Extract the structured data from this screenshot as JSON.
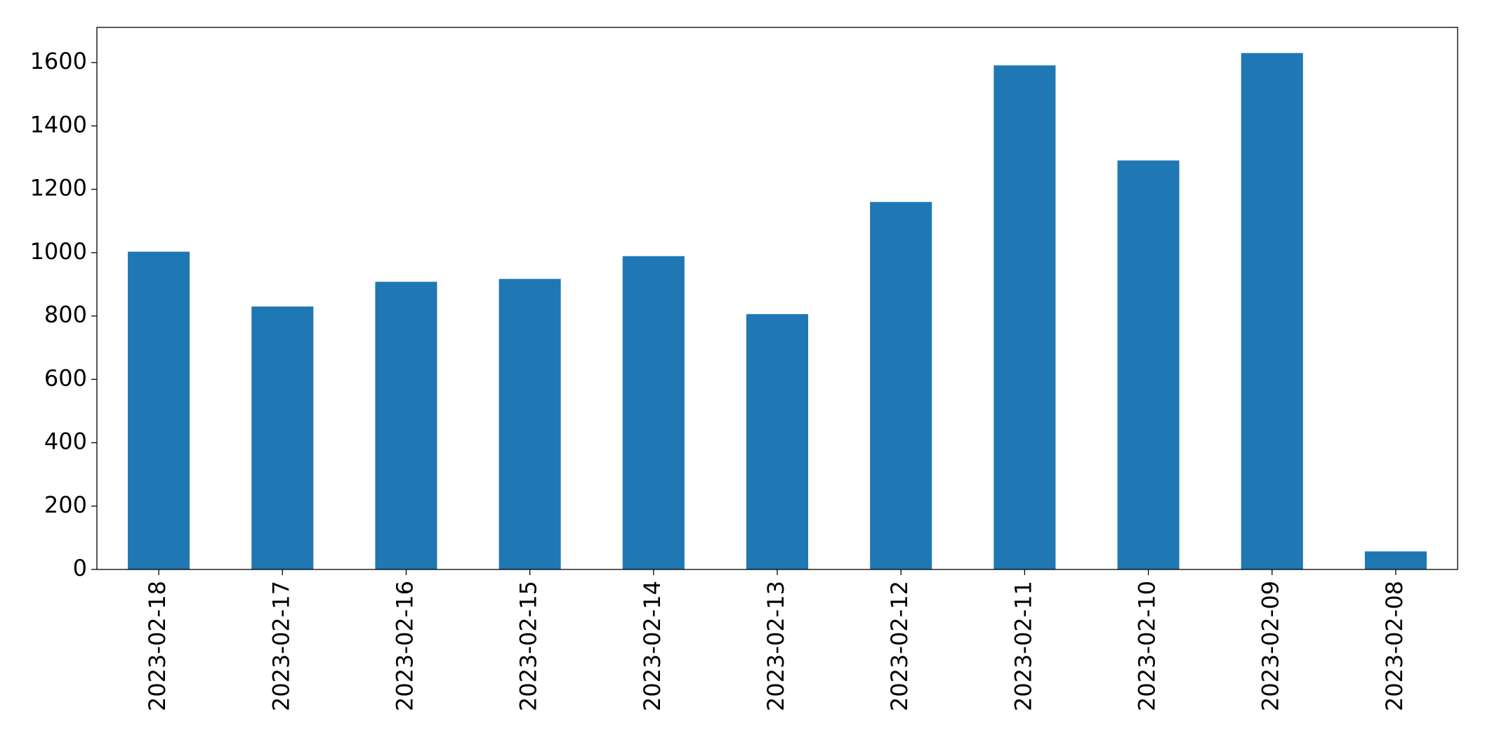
{
  "chart_data": {
    "type": "bar",
    "categories": [
      "2023-02-18",
      "2023-02-17",
      "2023-02-16",
      "2023-02-15",
      "2023-02-14",
      "2023-02-13",
      "2023-02-12",
      "2023-02-11",
      "2023-02-10",
      "2023-02-09",
      "2023-02-08"
    ],
    "values": [
      1003,
      830,
      908,
      917,
      989,
      806,
      1160,
      1591,
      1291,
      1630,
      57
    ],
    "color": "#1f77b4",
    "ylim": [
      0,
      1711
    ],
    "yticks": [
      0,
      200,
      400,
      600,
      800,
      1000,
      1200,
      1400,
      1600
    ],
    "grid": false
  }
}
